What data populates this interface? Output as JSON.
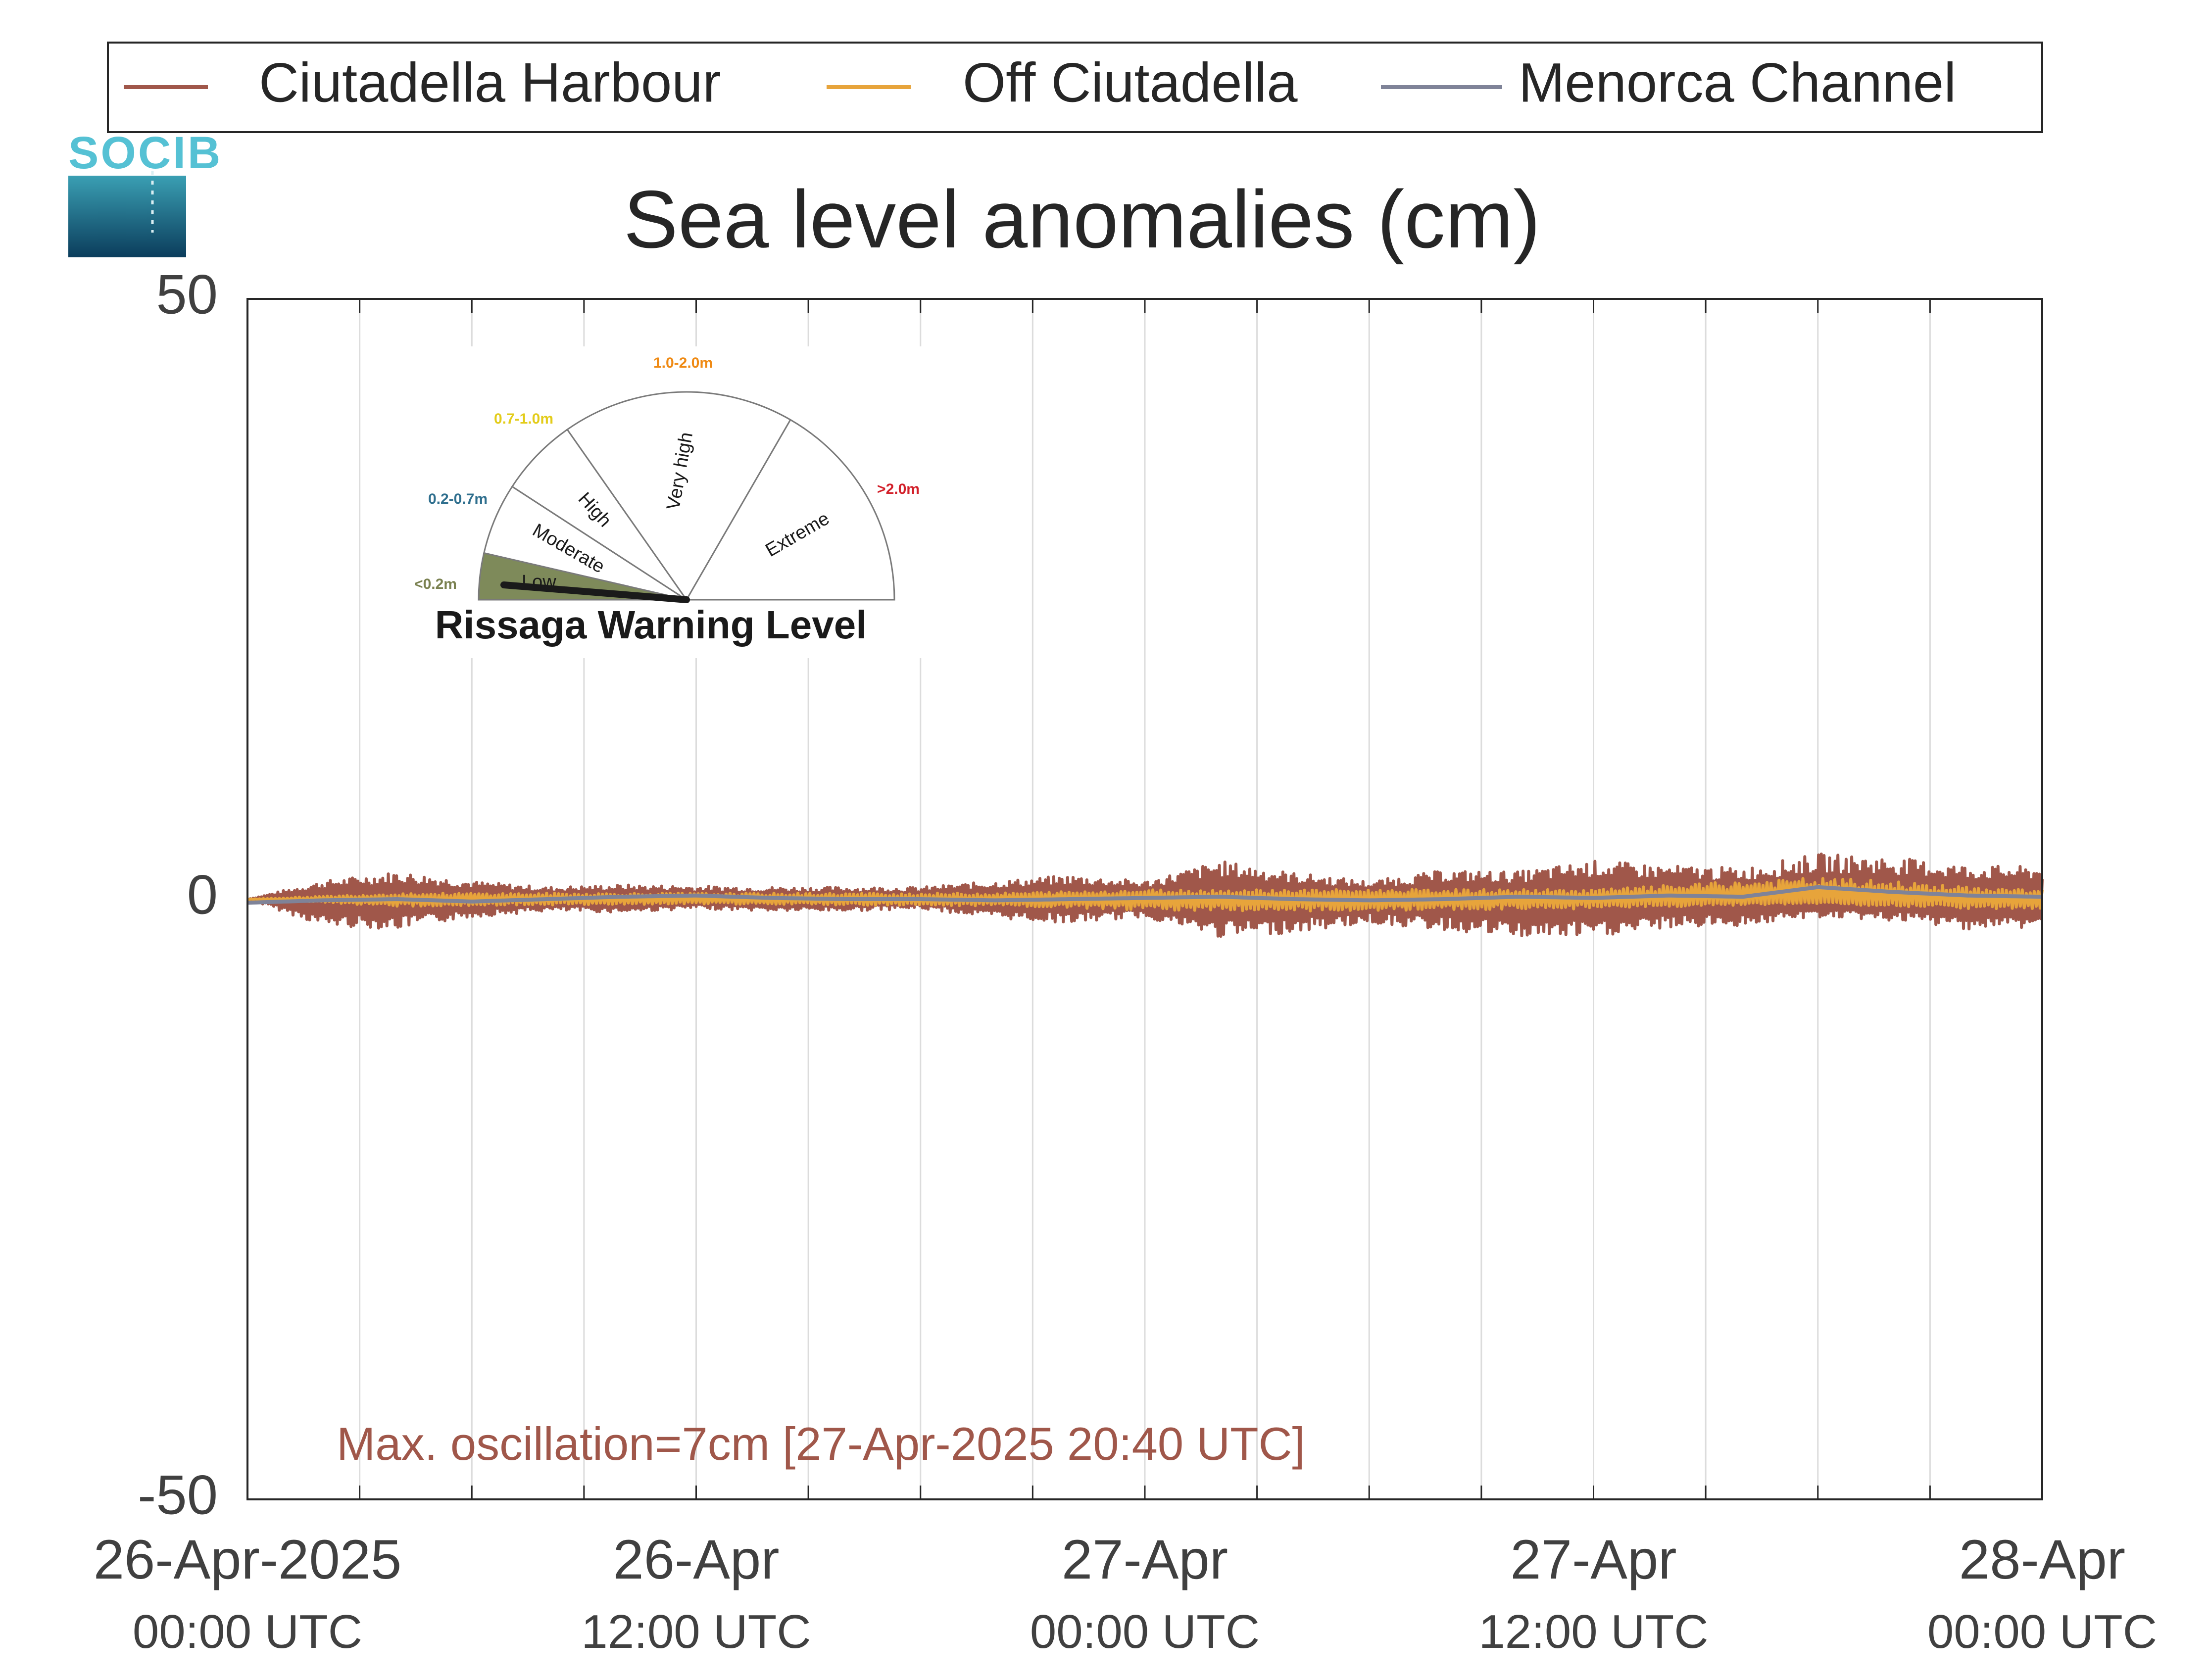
{
  "legend": {
    "items": [
      {
        "label": "Ciutadella Harbour",
        "color": "#a0574a"
      },
      {
        "label": "Off Ciutadella",
        "color": "#e7a43b"
      },
      {
        "label": "Menorca Channel",
        "color": "#7f8398"
      }
    ]
  },
  "logo": {
    "text": "SOCIB"
  },
  "gauge": {
    "title": "Rissaga Warning Level",
    "current_level": "Low",
    "sectors": [
      {
        "label": "Low",
        "range": "<0.2m",
        "range_color": "#7a8150",
        "fill": "#7e8a5a"
      },
      {
        "label": "Moderate",
        "range": "0.2-0.7m",
        "range_color": "#2f6f8e",
        "fill": "#ffffff"
      },
      {
        "label": "High",
        "range": "0.7-1.0m",
        "range_color": "#e3cc1a",
        "fill": "#ffffff"
      },
      {
        "label": "Very high",
        "range": "1.0-2.0m",
        "range_color": "#ef8a14",
        "fill": "#ffffff"
      },
      {
        "label": "Extreme",
        "range": ">2.0m",
        "range_color": "#d2202a",
        "fill": "#ffffff"
      }
    ]
  },
  "annotation": {
    "text": "Max. oscillation=7cm [27-Apr-2025 20:40 UTC]",
    "color": "#a0574a"
  },
  "chart_data": {
    "type": "line",
    "title": "Sea level anomalies (cm)",
    "xlabel": "",
    "ylabel": "",
    "ylim": [
      -50,
      50
    ],
    "yticks": [
      -50,
      0,
      50
    ],
    "xlim_hours": [
      0,
      48
    ],
    "x_tick_labels": [
      {
        "hour": 0,
        "line1": "26-Apr-2025",
        "line2": "00:00 UTC"
      },
      {
        "hour": 12,
        "line1": "26-Apr",
        "line2": "12:00 UTC"
      },
      {
        "hour": 24,
        "line1": "27-Apr",
        "line2": "00:00 UTC"
      },
      {
        "hour": 36,
        "line1": "27-Apr",
        "line2": "12:00 UTC"
      },
      {
        "hour": 48,
        "line1": "28-Apr",
        "line2": "00:00 UTC"
      }
    ],
    "grid": true,
    "legend_position": "top",
    "series": [
      {
        "name": "Ciutadella Harbour",
        "color": "#a0574a",
        "envelope": {
          "hours": [
            0,
            2,
            4,
            6,
            8,
            10,
            12,
            14,
            16,
            18,
            20,
            22,
            24,
            26,
            28,
            30,
            32,
            34,
            36,
            38,
            40,
            42,
            44,
            46,
            48
          ],
          "max": [
            0,
            1.5,
            2.3,
            1.5,
            1.0,
            1.2,
            1.1,
            1.0,
            1.0,
            1.0,
            1.5,
            2.0,
            1.5,
            3.2,
            2.2,
            1.5,
            2.4,
            2.3,
            3.2,
            2.8,
            2.6,
            3.8,
            3.5,
            2.8,
            2.7
          ],
          "min": [
            0,
            -2.2,
            -2.5,
            -1.5,
            -1.0,
            -1.1,
            -0.8,
            -1.0,
            -1.0,
            -0.8,
            -1.6,
            -2.0,
            -1.5,
            -3.2,
            -2.8,
            -2.0,
            -2.6,
            -3.2,
            -3.2,
            -2.4,
            -2.2,
            -1.5,
            -1.8,
            -2.5,
            -2.4
          ]
        }
      },
      {
        "name": "Off Ciutadella",
        "color": "#e7a43b",
        "envelope": {
          "hours": [
            0,
            4,
            8,
            12,
            16,
            20,
            24,
            28,
            32,
            36,
            40,
            42,
            44,
            46,
            48
          ],
          "max": [
            0,
            0.5,
            0.5,
            0.5,
            0.5,
            0.5,
            0.8,
            0.8,
            0.8,
            0.8,
            1.5,
            1.8,
            1.5,
            1.0,
            0.8
          ],
          "min": [
            0,
            -0.6,
            -0.5,
            -0.4,
            -0.5,
            -0.6,
            -0.9,
            -1.0,
            -0.9,
            -0.8,
            -0.5,
            -0.4,
            -0.6,
            -0.8,
            -0.8
          ]
        }
      },
      {
        "name": "Menorca Channel",
        "color": "#7f8398",
        "points": {
          "hours": [
            0,
            2,
            4,
            6,
            8,
            10,
            12,
            14,
            16,
            18,
            20,
            22,
            24,
            26,
            28,
            30,
            32,
            34,
            36,
            38,
            40,
            41,
            42,
            44,
            46,
            48
          ],
          "values": [
            -0.3,
            -0.1,
            0.0,
            -0.2,
            0.0,
            0.2,
            0.3,
            0.1,
            0.0,
            0.0,
            -0.1,
            0.0,
            0.1,
            0.2,
            0.0,
            -0.1,
            0.0,
            0.2,
            0.1,
            0.3,
            0.2,
            0.6,
            1.0,
            0.6,
            0.3,
            0.2
          ]
        }
      }
    ]
  }
}
